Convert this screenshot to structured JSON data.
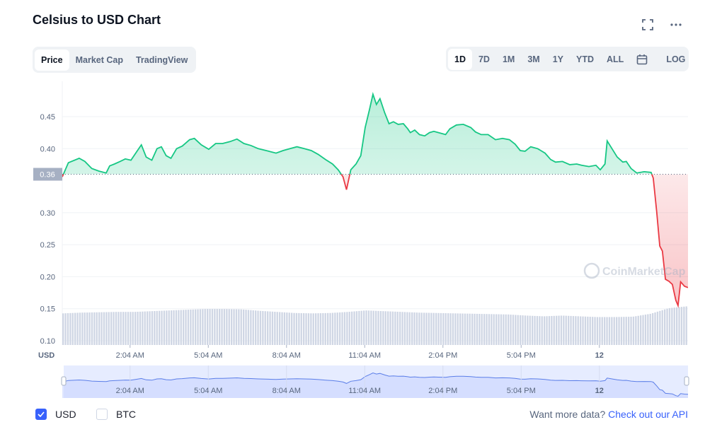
{
  "header": {
    "title": "Celsius to USD Chart",
    "fullscreen_icon": "fullscreen-icon",
    "more_icon": "more-horizontal-icon"
  },
  "view_tabs": [
    {
      "label": "Price",
      "active": true
    },
    {
      "label": "Market Cap",
      "active": false
    },
    {
      "label": "TradingView",
      "active": false
    }
  ],
  "range_tabs": [
    {
      "label": "1D",
      "active": true
    },
    {
      "label": "7D"
    },
    {
      "label": "1M"
    },
    {
      "label": "3M"
    },
    {
      "label": "1Y"
    },
    {
      "label": "YTD"
    },
    {
      "label": "ALL"
    }
  ],
  "calendar_icon": "calendar-icon",
  "log_label": "LOG",
  "footer": {
    "usd_label": "USD",
    "usd_checked": true,
    "btc_label": "BTC",
    "btc_checked": false,
    "more_data_text": "Want more data?",
    "api_link": "Check out our API"
  },
  "colors": {
    "up": "#16c784",
    "down": "#ea3943",
    "accent": "#3861fb",
    "volume": "#cfd6e4"
  },
  "chart_data": {
    "type": "line",
    "title": "",
    "ylabel": "USD",
    "ylim": [
      0.1,
      0.5
    ],
    "yticks": [
      "0.10",
      "0.15",
      "0.20",
      "0.25",
      "0.30",
      "0.35",
      "0.40",
      "0.45"
    ],
    "reference_price": {
      "value": 0.36,
      "label": "0.36"
    },
    "xticks": [
      {
        "label": "2:04 AM",
        "time": "02:04"
      },
      {
        "label": "5:04 AM",
        "time": "05:04"
      },
      {
        "label": "8:04 AM",
        "time": "08:04"
      },
      {
        "label": "11:04 AM",
        "time": "11:04"
      },
      {
        "label": "2:04 PM",
        "time": "14:04"
      },
      {
        "label": "5:04 PM",
        "time": "17:04"
      },
      {
        "label": "12",
        "time": "20:04",
        "bold": true
      }
    ],
    "watermark": "CoinMarketCap",
    "grid": true,
    "series": [
      {
        "points": [
          [
            "23:28",
            0.356
          ],
          [
            "23:42",
            0.378
          ],
          [
            "00:07",
            0.385
          ],
          [
            "00:20",
            0.38
          ],
          [
            "00:36",
            0.369
          ],
          [
            "00:52",
            0.365
          ],
          [
            "01:09",
            0.362
          ],
          [
            "01:17",
            0.373
          ],
          [
            "01:28",
            0.376
          ],
          [
            "01:41",
            0.38
          ],
          [
            "01:53",
            0.384
          ],
          [
            "02:06",
            0.382
          ],
          [
            "02:19",
            0.395
          ],
          [
            "02:30",
            0.406
          ],
          [
            "02:41",
            0.387
          ],
          [
            "02:54",
            0.382
          ],
          [
            "03:06",
            0.4
          ],
          [
            "03:16",
            0.403
          ],
          [
            "03:27",
            0.389
          ],
          [
            "03:38",
            0.385
          ],
          [
            "03:51",
            0.4
          ],
          [
            "04:04",
            0.404
          ],
          [
            "04:21",
            0.414
          ],
          [
            "04:32",
            0.416
          ],
          [
            "04:48",
            0.406
          ],
          [
            "05:05",
            0.399
          ],
          [
            "05:21",
            0.408
          ],
          [
            "05:37",
            0.408
          ],
          [
            "05:54",
            0.411
          ],
          [
            "06:10",
            0.415
          ],
          [
            "06:26",
            0.408
          ],
          [
            "06:42",
            0.405
          ],
          [
            "06:59",
            0.4
          ],
          [
            "07:23",
            0.396
          ],
          [
            "07:40",
            0.393
          ],
          [
            "07:56",
            0.397
          ],
          [
            "08:12",
            0.4
          ],
          [
            "08:28",
            0.403
          ],
          [
            "08:45",
            0.4
          ],
          [
            "09:01",
            0.397
          ],
          [
            "09:17",
            0.391
          ],
          [
            "09:34",
            0.383
          ],
          [
            "09:50",
            0.376
          ],
          [
            "10:03",
            0.367
          ],
          [
            "10:14",
            0.356
          ],
          [
            "10:22",
            0.336
          ],
          [
            "10:32",
            0.367
          ],
          [
            "10:44",
            0.376
          ],
          [
            "10:55",
            0.389
          ],
          [
            "11:05",
            0.433
          ],
          [
            "11:15",
            0.461
          ],
          [
            "11:23",
            0.485
          ],
          [
            "11:31",
            0.469
          ],
          [
            "11:39",
            0.478
          ],
          [
            "11:50",
            0.456
          ],
          [
            "12:00",
            0.439
          ],
          [
            "12:10",
            0.442
          ],
          [
            "12:21",
            0.438
          ],
          [
            "12:33",
            0.439
          ],
          [
            "12:43",
            0.431
          ],
          [
            "12:49",
            0.425
          ],
          [
            "12:59",
            0.429
          ],
          [
            "13:10",
            0.422
          ],
          [
            "13:22",
            0.42
          ],
          [
            "13:33",
            0.425
          ],
          [
            "13:43",
            0.427
          ],
          [
            "13:54",
            0.425
          ],
          [
            "14:10",
            0.422
          ],
          [
            "14:20",
            0.431
          ],
          [
            "14:35",
            0.437
          ],
          [
            "14:51",
            0.438
          ],
          [
            "15:08",
            0.433
          ],
          [
            "15:19",
            0.426
          ],
          [
            "15:32",
            0.422
          ],
          [
            "15:48",
            0.422
          ],
          [
            "16:05",
            0.414
          ],
          [
            "16:21",
            0.416
          ],
          [
            "16:37",
            0.414
          ],
          [
            "16:50",
            0.407
          ],
          [
            "17:02",
            0.397
          ],
          [
            "17:13",
            0.396
          ],
          [
            "17:26",
            0.403
          ],
          [
            "17:42",
            0.4
          ],
          [
            "17:59",
            0.393
          ],
          [
            "18:12",
            0.383
          ],
          [
            "18:23",
            0.379
          ],
          [
            "18:39",
            0.38
          ],
          [
            "18:56",
            0.375
          ],
          [
            "19:12",
            0.376
          ],
          [
            "19:23",
            0.374
          ],
          [
            "19:40",
            0.372
          ],
          [
            "19:56",
            0.374
          ],
          [
            "20:06",
            0.367
          ],
          [
            "20:17",
            0.376
          ],
          [
            "20:22",
            0.412
          ],
          [
            "20:33",
            0.4
          ],
          [
            "20:45",
            0.387
          ],
          [
            "20:58",
            0.379
          ],
          [
            "21:06",
            0.38
          ],
          [
            "21:17",
            0.369
          ],
          [
            "21:30",
            0.362
          ],
          [
            "21:47",
            0.364
          ],
          [
            "22:03",
            0.363
          ],
          [
            "22:08",
            0.354
          ],
          [
            "22:16",
            0.301
          ],
          [
            "22:23",
            0.248
          ],
          [
            "22:29",
            0.24
          ],
          [
            "22:36",
            0.196
          ],
          [
            "22:44",
            0.193
          ],
          [
            "22:52",
            0.188
          ],
          [
            "23:00",
            0.163
          ],
          [
            "23:05",
            0.155
          ],
          [
            "23:11",
            0.192
          ],
          [
            "23:20",
            0.185
          ],
          [
            "23:28",
            0.183
          ]
        ]
      }
    ],
    "volume_relative": [
      0.86,
      0.88,
      0.89,
      0.9,
      0.9,
      0.92,
      0.94,
      0.96,
      0.98,
      0.98,
      0.97,
      0.93,
      0.9,
      0.87,
      0.86,
      0.87,
      0.9,
      0.94,
      0.92,
      0.9,
      0.88,
      0.87,
      0.86,
      0.85,
      0.84,
      0.83,
      0.8,
      0.78,
      0.8,
      0.78,
      0.76,
      0.76,
      0.77,
      0.85,
      1.0,
      1.05
    ]
  }
}
